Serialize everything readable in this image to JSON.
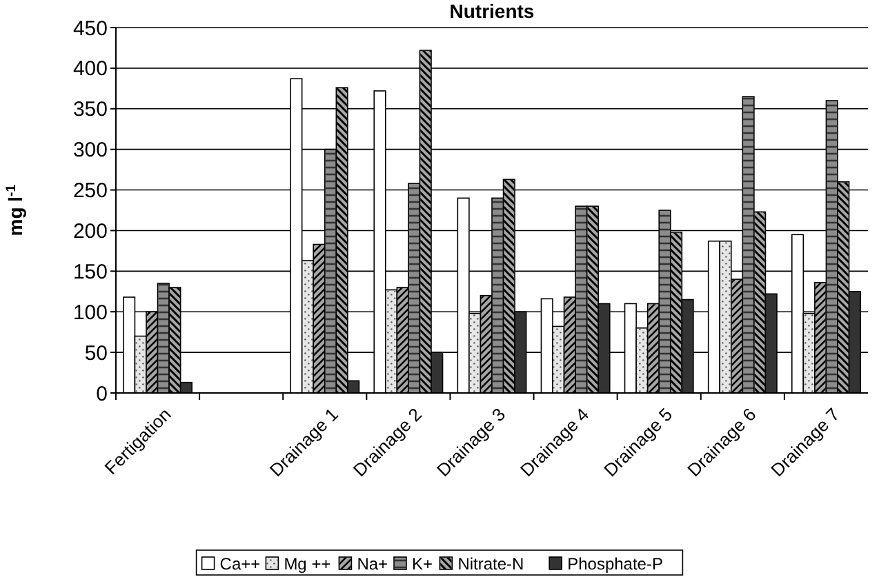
{
  "chart_data": {
    "type": "bar",
    "title": "Nutrients",
    "ylabel": "mg l$^{-1}$",
    "categories": [
      "Fertigation",
      null,
      "Drainage 1",
      "Drainage 2",
      "Drainage 3",
      "Drainage 4",
      "Drainage 5",
      "Drainage 6",
      "Drainage 7"
    ],
    "series": [
      {
        "name": "Ca++",
        "color": "#ffffff",
        "values": [
          118,
          null,
          387,
          372,
          240,
          116,
          110,
          187,
          195
        ]
      },
      {
        "name": "Mg ++",
        "color": "#e6e6e6",
        "values": [
          70,
          null,
          163,
          127,
          98,
          82,
          80,
          187,
          98
        ]
      },
      {
        "name": "Na+",
        "color": "#a6a6a6",
        "values": [
          100,
          null,
          183,
          130,
          120,
          118,
          110,
          140,
          136
        ]
      },
      {
        "name": "K+",
        "color": "#8c8c8c",
        "values": [
          135,
          null,
          300,
          258,
          240,
          230,
          225,
          365,
          360
        ]
      },
      {
        "name": "Nitrate-N",
        "color": "#a6a6a6",
        "values": [
          130,
          null,
          376,
          422,
          263,
          230,
          198,
          223,
          260
        ]
      },
      {
        "name": "Phosphate-P",
        "color": "#333333",
        "values": [
          13,
          null,
          15,
          50,
          100,
          110,
          115,
          122,
          125
        ]
      }
    ],
    "ylim": [
      0,
      450
    ],
    "yticks": [
      0,
      50,
      100,
      150,
      200,
      250,
      300,
      350,
      400,
      450
    ],
    "grid": "y",
    "legend": "bottom"
  }
}
